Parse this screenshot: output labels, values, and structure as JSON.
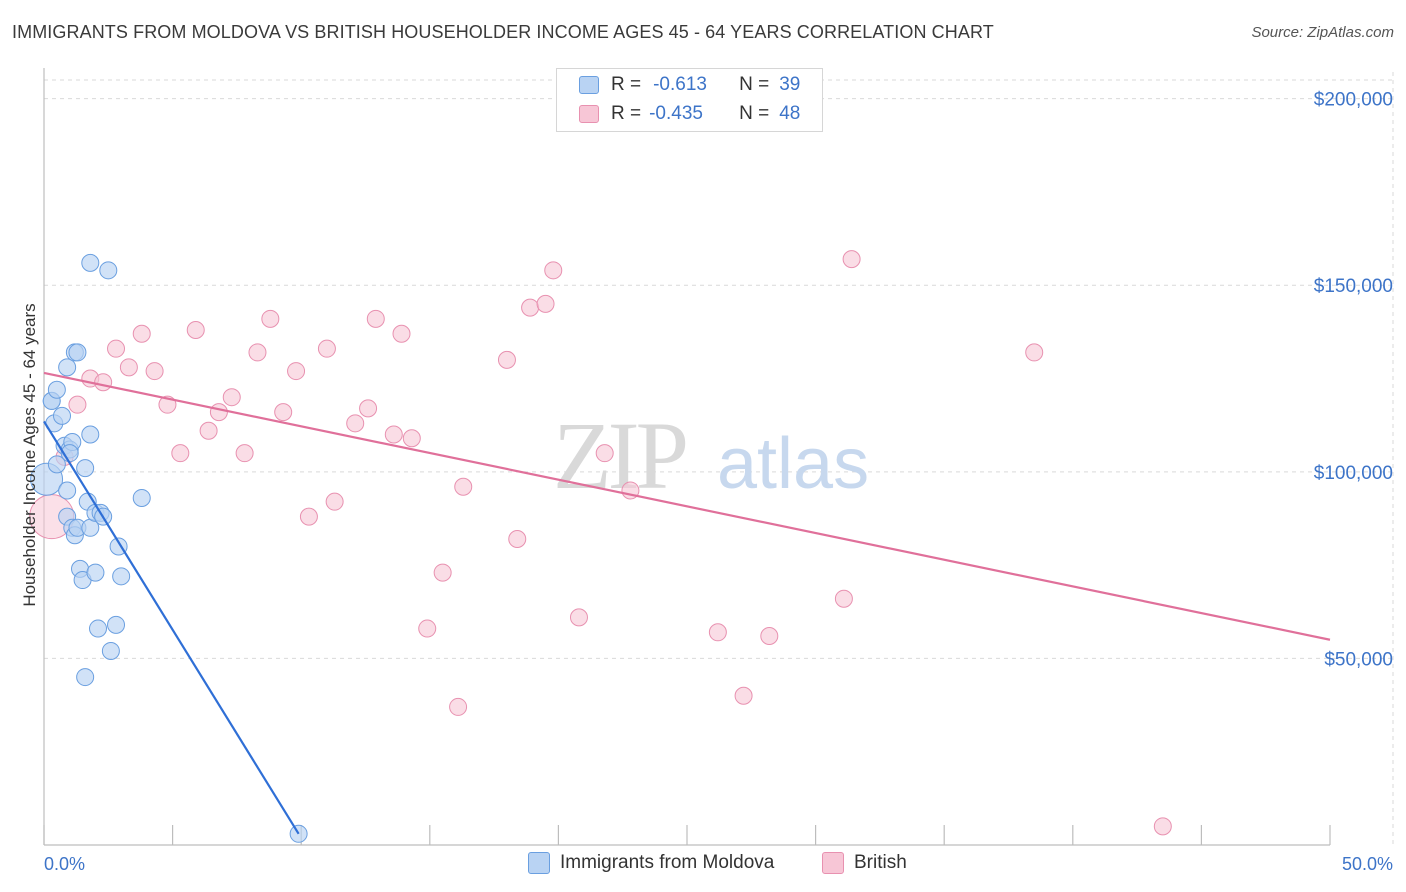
{
  "title": "IMMIGRANTS FROM MOLDOVA VS BRITISH HOUSEHOLDER INCOME AGES 45 - 64 YEARS CORRELATION CHART",
  "source": "Source: ZipAtlas.com",
  "watermark": {
    "zip": "ZIP",
    "atlas": "atlas"
  },
  "colors": {
    "moldova_fill": "#b9d3f3",
    "moldova_stroke": "#6a9fe0",
    "moldova_line": "#2f6fd6",
    "british_fill": "#f7c6d6",
    "british_stroke": "#e891b0",
    "british_line": "#e0709a",
    "tick_text": "#3d74c8",
    "grid": "#d9d9d9"
  },
  "legend": {
    "rows": [
      {
        "r_label": "R =",
        "r_value": "-0.613",
        "n_label": "N =",
        "n_value": "39"
      },
      {
        "r_label": "R =",
        "r_value": "-0.435",
        "n_label": "N =",
        "n_value": "48"
      }
    ]
  },
  "chart_data": {
    "type": "scatter",
    "title": "IMMIGRANTS FROM MOLDOVA VS BRITISH HOUSEHOLDER INCOME AGES 45 - 64 YEARS CORRELATION CHART",
    "xlabel": "",
    "ylabel": "Householder Income Ages 45 - 64 years",
    "xlim": [
      0,
      50
    ],
    "ylim": [
      0,
      205000
    ],
    "x_tick_labels": [
      "0.0%",
      "50.0%"
    ],
    "y_ticks": [
      50000,
      100000,
      150000,
      200000
    ],
    "y_tick_labels": [
      "$50,000",
      "$100,000",
      "$150,000",
      "$200,000"
    ],
    "grid": true,
    "series": [
      {
        "name": "Immigrants from Moldova",
        "r": -0.613,
        "n": 39,
        "trend": {
          "x": [
            0.0,
            9.9
          ],
          "y": [
            113500,
            3000
          ]
        },
        "points": [
          [
            0.1,
            98000
          ],
          [
            0.3,
            119000
          ],
          [
            0.3,
            119000
          ],
          [
            0.4,
            113000
          ],
          [
            0.5,
            102000
          ],
          [
            0.5,
            122000
          ],
          [
            0.7,
            115000
          ],
          [
            0.8,
            107000
          ],
          [
            0.9,
            88000
          ],
          [
            0.9,
            95000
          ],
          [
            0.9,
            128000
          ],
          [
            1.0,
            106000
          ],
          [
            1.1,
            108000
          ],
          [
            1.1,
            85000
          ],
          [
            1.2,
            83000
          ],
          [
            1.2,
            132000
          ],
          [
            1.3,
            85000
          ],
          [
            1.3,
            132000
          ],
          [
            1.4,
            74000
          ],
          [
            1.5,
            71000
          ],
          [
            1.6,
            45000
          ],
          [
            1.6,
            101000
          ],
          [
            1.7,
            92000
          ],
          [
            1.8,
            85000
          ],
          [
            1.8,
            110000
          ],
          [
            1.8,
            156000
          ],
          [
            2.0,
            89000
          ],
          [
            2.0,
            73000
          ],
          [
            2.1,
            58000
          ],
          [
            2.2,
            89000
          ],
          [
            2.3,
            88000
          ],
          [
            2.5,
            154000
          ],
          [
            2.6,
            52000
          ],
          [
            2.8,
            59000
          ],
          [
            2.9,
            80000
          ],
          [
            3.0,
            72000
          ],
          [
            3.8,
            93000
          ],
          [
            9.9,
            3000
          ],
          [
            1.0,
            105000
          ]
        ]
      },
      {
        "name": "British",
        "r": -0.435,
        "n": 48,
        "trend": {
          "x": [
            0.0,
            50.0
          ],
          "y": [
            126500,
            55000
          ]
        },
        "points": [
          [
            0.3,
            88000
          ],
          [
            0.8,
            104000
          ],
          [
            1.3,
            118000
          ],
          [
            1.8,
            125000
          ],
          [
            2.3,
            124000
          ],
          [
            2.8,
            133000
          ],
          [
            3.3,
            128000
          ],
          [
            3.8,
            137000
          ],
          [
            4.3,
            127000
          ],
          [
            4.8,
            118000
          ],
          [
            5.3,
            105000
          ],
          [
            5.9,
            138000
          ],
          [
            6.4,
            111000
          ],
          [
            6.8,
            116000
          ],
          [
            7.3,
            120000
          ],
          [
            7.8,
            105000
          ],
          [
            8.3,
            132000
          ],
          [
            8.8,
            141000
          ],
          [
            9.3,
            116000
          ],
          [
            9.8,
            127000
          ],
          [
            10.3,
            88000
          ],
          [
            11.0,
            133000
          ],
          [
            11.3,
            92000
          ],
          [
            12.1,
            113000
          ],
          [
            12.6,
            117000
          ],
          [
            12.9,
            141000
          ],
          [
            13.6,
            110000
          ],
          [
            13.9,
            137000
          ],
          [
            14.3,
            109000
          ],
          [
            14.9,
            58000
          ],
          [
            15.5,
            73000
          ],
          [
            16.1,
            37000
          ],
          [
            16.3,
            96000
          ],
          [
            18.0,
            130000
          ],
          [
            18.4,
            82000
          ],
          [
            18.9,
            144000
          ],
          [
            19.5,
            145000
          ],
          [
            19.8,
            154000
          ],
          [
            20.8,
            61000
          ],
          [
            21.8,
            105000
          ],
          [
            22.8,
            95000
          ],
          [
            26.2,
            57000
          ],
          [
            27.2,
            40000
          ],
          [
            28.2,
            56000
          ],
          [
            31.1,
            66000
          ],
          [
            31.4,
            157000
          ],
          [
            38.5,
            132000
          ],
          [
            43.5,
            5000
          ]
        ]
      }
    ]
  },
  "bottom_legend": [
    "Immigrants from Moldova",
    "British"
  ]
}
